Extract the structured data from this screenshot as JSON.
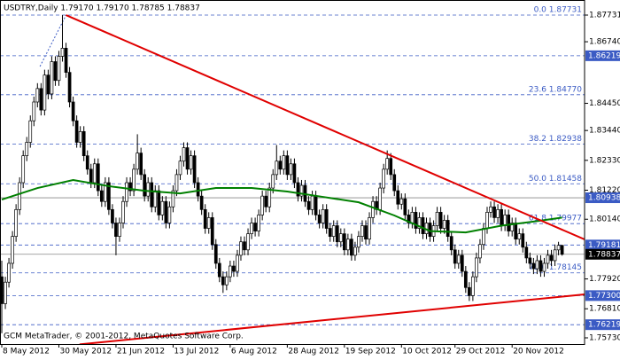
{
  "chart_data": {
    "type": "candlestick",
    "title": "USDTRY,Daily  1.79170 1.79170 1.78785 1.78837",
    "footer": "GCM MetaTrader, © 2001-2012, MetaQuotes Software Corp.",
    "up_color": "#ffffff",
    "down_color": "#000000",
    "wick_color": "#000000",
    "open": [
      1.78,
      1.77,
      1.778,
      1.785,
      1.795,
      1.805,
      1.815,
      1.825,
      1.83,
      1.838,
      1.845,
      1.85,
      1.842,
      1.855,
      1.848,
      1.86,
      1.853,
      1.862,
      1.865,
      1.856,
      1.845,
      1.838,
      1.83,
      1.834,
      1.825,
      1.82,
      1.815,
      1.822,
      1.812,
      1.808,
      1.815,
      1.805,
      1.8,
      1.795,
      1.8,
      1.808,
      1.815,
      1.812,
      1.82,
      1.826,
      1.818,
      1.81,
      1.815,
      1.806,
      1.812,
      1.803,
      1.808,
      1.8,
      1.806,
      1.812,
      1.818,
      1.823,
      1.828,
      1.82,
      1.825,
      1.815,
      1.81,
      1.805,
      1.798,
      1.802,
      1.792,
      1.785,
      1.78,
      1.777,
      1.78,
      1.784,
      1.782,
      1.788,
      1.793,
      1.79,
      1.796,
      1.8,
      1.797,
      1.803,
      1.81,
      1.806,
      1.813,
      1.818,
      1.823,
      1.82,
      1.825,
      1.818,
      1.822,
      1.815,
      1.81,
      1.814,
      1.808,
      1.805,
      1.81,
      1.803,
      1.8,
      1.805,
      1.798,
      1.795,
      1.799,
      1.793,
      1.796,
      1.79,
      1.794,
      1.788,
      1.791,
      1.795,
      1.799,
      1.794,
      1.802,
      1.808,
      1.805,
      1.813,
      1.82,
      1.824,
      1.818,
      1.812,
      1.807,
      1.809,
      1.803,
      1.8,
      1.804,
      1.798,
      1.802,
      1.796,
      1.8,
      1.795,
      1.799,
      1.804,
      1.798,
      1.801,
      1.795,
      1.79,
      1.785,
      1.788,
      1.782,
      1.776,
      1.773,
      1.78,
      1.787,
      1.792,
      1.798,
      1.804,
      1.806,
      1.802,
      1.805,
      1.799,
      1.803,
      1.797,
      1.8,
      1.794,
      1.796,
      1.791,
      1.787,
      1.785,
      1.783,
      1.786,
      1.782,
      1.785,
      1.788,
      1.786,
      1.79,
      1.7917
    ],
    "high": [
      1.786,
      1.78,
      1.787,
      1.797,
      1.807,
      1.817,
      1.827,
      1.832,
      1.84,
      1.847,
      1.852,
      1.852,
      1.857,
      1.857,
      1.862,
      1.862,
      1.864,
      1.8773,
      1.867,
      1.858,
      1.847,
      1.84,
      1.836,
      1.836,
      1.827,
      1.822,
      1.824,
      1.824,
      1.814,
      1.817,
      1.817,
      1.807,
      1.802,
      1.802,
      1.81,
      1.817,
      1.817,
      1.822,
      1.833,
      1.828,
      1.82,
      1.817,
      1.817,
      1.814,
      1.814,
      1.81,
      1.81,
      1.808,
      1.814,
      1.82,
      1.825,
      1.83,
      1.83,
      1.827,
      1.827,
      1.817,
      1.812,
      1.807,
      1.804,
      1.804,
      1.794,
      1.787,
      1.782,
      1.782,
      1.786,
      1.786,
      1.79,
      1.795,
      1.795,
      1.798,
      1.802,
      1.802,
      1.805,
      1.812,
      1.812,
      1.815,
      1.82,
      1.829,
      1.825,
      1.827,
      1.827,
      1.824,
      1.824,
      1.817,
      1.816,
      1.816,
      1.81,
      1.812,
      1.812,
      1.805,
      1.807,
      1.807,
      1.8,
      1.801,
      1.801,
      1.798,
      1.798,
      1.796,
      1.796,
      1.793,
      1.797,
      1.801,
      1.801,
      1.804,
      1.81,
      1.81,
      1.815,
      1.822,
      1.827,
      1.826,
      1.82,
      1.814,
      1.811,
      1.811,
      1.805,
      1.806,
      1.806,
      1.804,
      1.804,
      1.802,
      1.802,
      1.801,
      1.806,
      1.806,
      1.803,
      1.803,
      1.797,
      1.792,
      1.79,
      1.79,
      1.784,
      1.778,
      1.782,
      1.789,
      1.794,
      1.8,
      1.806,
      1.808,
      1.808,
      1.807,
      1.807,
      1.805,
      1.805,
      1.802,
      1.802,
      1.798,
      1.798,
      1.793,
      1.789,
      1.787,
      1.788,
      1.788,
      1.787,
      1.79,
      1.79,
      1.792,
      1.793,
      1.7917
    ],
    "low": [
      1.759,
      1.768,
      1.776,
      1.783,
      1.793,
      1.803,
      1.813,
      1.823,
      1.828,
      1.836,
      1.843,
      1.84,
      1.84,
      1.846,
      1.846,
      1.851,
      1.851,
      1.86,
      1.854,
      1.843,
      1.836,
      1.828,
      1.828,
      1.823,
      1.818,
      1.813,
      1.813,
      1.81,
      1.806,
      1.806,
      1.803,
      1.798,
      1.788,
      1.793,
      1.798,
      1.806,
      1.81,
      1.81,
      1.818,
      1.816,
      1.808,
      1.808,
      1.804,
      1.804,
      1.801,
      1.801,
      1.798,
      1.798,
      1.804,
      1.81,
      1.816,
      1.821,
      1.818,
      1.818,
      1.813,
      1.808,
      1.803,
      1.796,
      1.796,
      1.79,
      1.783,
      1.778,
      1.774,
      1.775,
      1.778,
      1.78,
      1.78,
      1.786,
      1.788,
      1.788,
      1.794,
      1.795,
      1.795,
      1.801,
      1.804,
      1.804,
      1.811,
      1.816,
      1.818,
      1.818,
      1.816,
      1.816,
      1.813,
      1.808,
      1.808,
      1.806,
      1.803,
      1.803,
      1.801,
      1.798,
      1.798,
      1.796,
      1.793,
      1.793,
      1.791,
      1.791,
      1.788,
      1.788,
      1.786,
      1.786,
      1.789,
      1.793,
      1.792,
      1.792,
      1.8,
      1.803,
      1.803,
      1.811,
      1.818,
      1.816,
      1.81,
      1.805,
      1.805,
      1.801,
      1.798,
      1.798,
      1.796,
      1.796,
      1.794,
      1.794,
      1.793,
      1.793,
      1.797,
      1.796,
      1.796,
      1.793,
      1.788,
      1.783,
      1.783,
      1.78,
      1.774,
      1.771,
      1.771,
      1.778,
      1.785,
      1.79,
      1.796,
      1.802,
      1.8,
      1.8,
      1.797,
      1.797,
      1.795,
      1.795,
      1.792,
      1.792,
      1.789,
      1.785,
      1.783,
      1.781,
      1.781,
      1.78,
      1.78,
      1.783,
      1.784,
      1.784,
      1.788,
      1.78785
    ],
    "close": [
      1.77,
      1.778,
      1.785,
      1.795,
      1.805,
      1.815,
      1.825,
      1.83,
      1.838,
      1.845,
      1.85,
      1.842,
      1.855,
      1.848,
      1.86,
      1.853,
      1.862,
      1.865,
      1.856,
      1.845,
      1.838,
      1.83,
      1.834,
      1.825,
      1.82,
      1.815,
      1.822,
      1.812,
      1.808,
      1.815,
      1.805,
      1.8,
      1.795,
      1.8,
      1.808,
      1.815,
      1.812,
      1.82,
      1.826,
      1.818,
      1.81,
      1.815,
      1.806,
      1.812,
      1.803,
      1.808,
      1.8,
      1.806,
      1.812,
      1.818,
      1.823,
      1.828,
      1.82,
      1.825,
      1.815,
      1.81,
      1.805,
      1.798,
      1.802,
      1.792,
      1.785,
      1.78,
      1.777,
      1.78,
      1.784,
      1.782,
      1.788,
      1.793,
      1.79,
      1.796,
      1.8,
      1.797,
      1.803,
      1.81,
      1.806,
      1.813,
      1.818,
      1.823,
      1.82,
      1.825,
      1.818,
      1.822,
      1.815,
      1.81,
      1.814,
      1.808,
      1.805,
      1.81,
      1.803,
      1.8,
      1.805,
      1.798,
      1.795,
      1.799,
      1.793,
      1.796,
      1.79,
      1.794,
      1.788,
      1.791,
      1.795,
      1.799,
      1.794,
      1.802,
      1.808,
      1.805,
      1.813,
      1.82,
      1.824,
      1.818,
      1.812,
      1.807,
      1.809,
      1.803,
      1.8,
      1.804,
      1.798,
      1.802,
      1.796,
      1.8,
      1.795,
      1.799,
      1.804,
      1.798,
      1.801,
      1.795,
      1.79,
      1.785,
      1.788,
      1.782,
      1.776,
      1.773,
      1.78,
      1.787,
      1.792,
      1.798,
      1.804,
      1.806,
      1.802,
      1.805,
      1.799,
      1.803,
      1.797,
      1.8,
      1.794,
      1.796,
      1.791,
      1.787,
      1.785,
      1.783,
      1.786,
      1.782,
      1.785,
      1.788,
      1.786,
      1.79,
      1.7917,
      1.78837
    ],
    "xlim": [
      -0.5,
      163.3
    ],
    "ylim": [
      1.75499,
      1.88292
    ],
    "xticks": [
      {
        "value": 0,
        "label": "8 May 2012"
      },
      {
        "value": 16,
        "label": "30 May 2012"
      },
      {
        "value": 32,
        "label": "21 Jun 2012"
      },
      {
        "value": 48,
        "label": "13 Jul 2012"
      },
      {
        "value": 64,
        "label": "6 Aug 2012"
      },
      {
        "value": 80,
        "label": "28 Aug 2012"
      },
      {
        "value": 96,
        "label": "19 Sep 2012"
      },
      {
        "value": 112,
        "label": "10 Oct 2012"
      },
      {
        "value": 127,
        "label": "29 Oct 2012"
      },
      {
        "value": 143,
        "label": "20 Nov 2012"
      }
    ],
    "yticks": [
      1.87731,
      {
        "value": 1.8674,
        "label": "1.86740"
      },
      {
        "value": 1.8445,
        "label": "1.84450"
      },
      {
        "value": 1.8344,
        "label": "1.83440"
      },
      {
        "value": 1.8233,
        "label": "1.82330"
      },
      {
        "value": 1.8122,
        "label": "1.81220"
      },
      {
        "value": 1.8014,
        "label": "1.80140"
      },
      {
        "value": 1.7792,
        "label": "1.77920"
      },
      {
        "value": 1.7681,
        "label": "1.76810"
      },
      {
        "value": 1.7573,
        "label": "1.75730"
      }
    ],
    "moving_average": {
      "color": "#008000",
      "x": [
        0,
        10,
        20,
        30,
        40,
        50,
        60,
        70,
        80,
        90,
        100,
        110,
        120,
        130,
        140,
        150,
        157
      ],
      "values": [
        1.8087,
        1.813,
        1.816,
        1.8137,
        1.812,
        1.811,
        1.813,
        1.813,
        1.8117,
        1.8097,
        1.8077,
        1.8028,
        1.797,
        1.7965,
        1.799,
        1.8007,
        1.802
      ]
    },
    "trendlines": [
      {
        "color": "#e00000",
        "x": [
          18,
          163.3
        ],
        "values": [
          1.8773,
          1.7939
        ]
      },
      {
        "color": "#e00000",
        "x": [
          21.8,
          163.3
        ],
        "values": [
          1.75485,
          1.77345
        ]
      }
    ],
    "fib": {
      "color": "#3b5bc4",
      "anchor_x": [
        10.7,
        18
      ],
      "anchor_values": [
        1.8582,
        1.8773
      ],
      "levels": [
        {
          "value": 1.87731,
          "label": "0.0 1.87731"
        },
        {
          "value": 1.8477,
          "label": "23.6 1.84770"
        },
        {
          "value": 1.82938,
          "label": "38.2 1.82938"
        },
        {
          "value": 1.81458,
          "label": "50.0 1.81458"
        },
        {
          "value": 1.79977,
          "label": "61.8 1.79977"
        },
        {
          "value": 1.78145,
          "label": "78.6 1.78145"
        }
      ]
    },
    "price_labels": [
      {
        "value": 1.86219,
        "label": "1.86219",
        "color": "#3b5bc4",
        "line": "dashed"
      },
      {
        "value": 1.80938,
        "label": "1.80938",
        "color": "#3b5bc4",
        "line": "solid"
      },
      {
        "value": 1.79181,
        "label": "1.79181",
        "color": "#3b5bc4",
        "line": "dashed"
      },
      {
        "value": 1.78837,
        "label": "1.78837",
        "color": "#000000",
        "line": "solid"
      },
      {
        "value": 1.773,
        "label": "1.77300",
        "color": "#3b5bc4",
        "line": "dashed"
      },
      {
        "value": 1.76219,
        "label": "1.76219",
        "color": "#3b5bc4",
        "line": "dashed"
      }
    ]
  }
}
